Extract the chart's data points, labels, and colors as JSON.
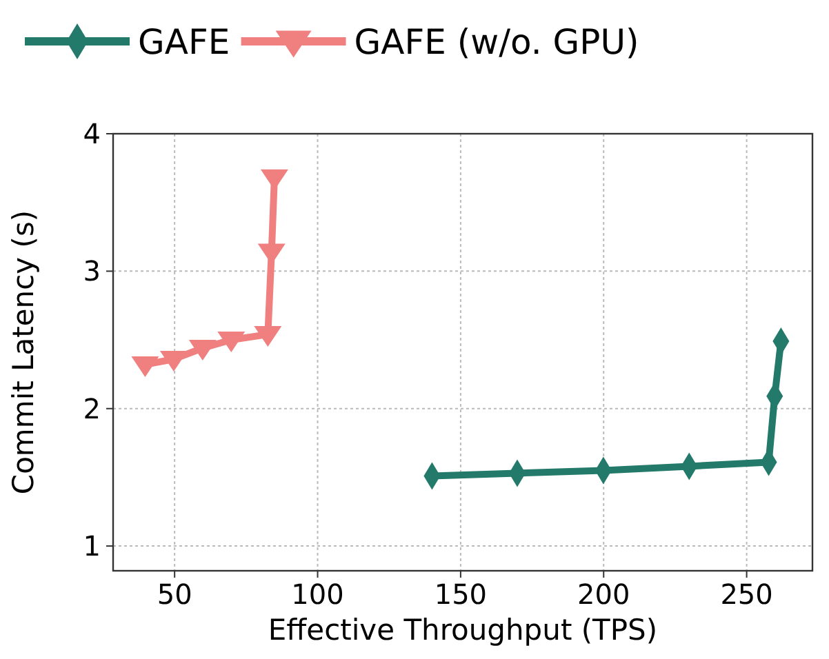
{
  "chart_data": {
    "type": "line",
    "xlabel": "Effective Throughput (TPS)",
    "ylabel": "Commit Latency (s)",
    "xlim": [
      28.5,
      273
    ],
    "ylim": [
      0.82,
      4
    ],
    "xticks": [
      50,
      100,
      150,
      200,
      250
    ],
    "yticks": [
      1,
      2,
      3,
      4
    ],
    "grid": true,
    "legend": "top",
    "line_style": "solid",
    "series": [
      {
        "name": "GAFE",
        "color": "#237a6b",
        "marker": "diamond",
        "x": [
          140,
          169.8,
          199.9,
          229.9,
          257.7,
          259.8,
          262
        ],
        "values": [
          1.51,
          1.53,
          1.55,
          1.58,
          1.61,
          2.09,
          2.49
        ]
      },
      {
        "name": "GAFE (w/o. GPU)",
        "color": "#f08080",
        "marker": "triangle",
        "x": [
          39.7,
          49.7,
          59.8,
          69.8,
          82.6,
          83.9,
          84.9
        ],
        "values": [
          2.32,
          2.36,
          2.44,
          2.5,
          2.54,
          3.14,
          3.68
        ]
      }
    ]
  }
}
